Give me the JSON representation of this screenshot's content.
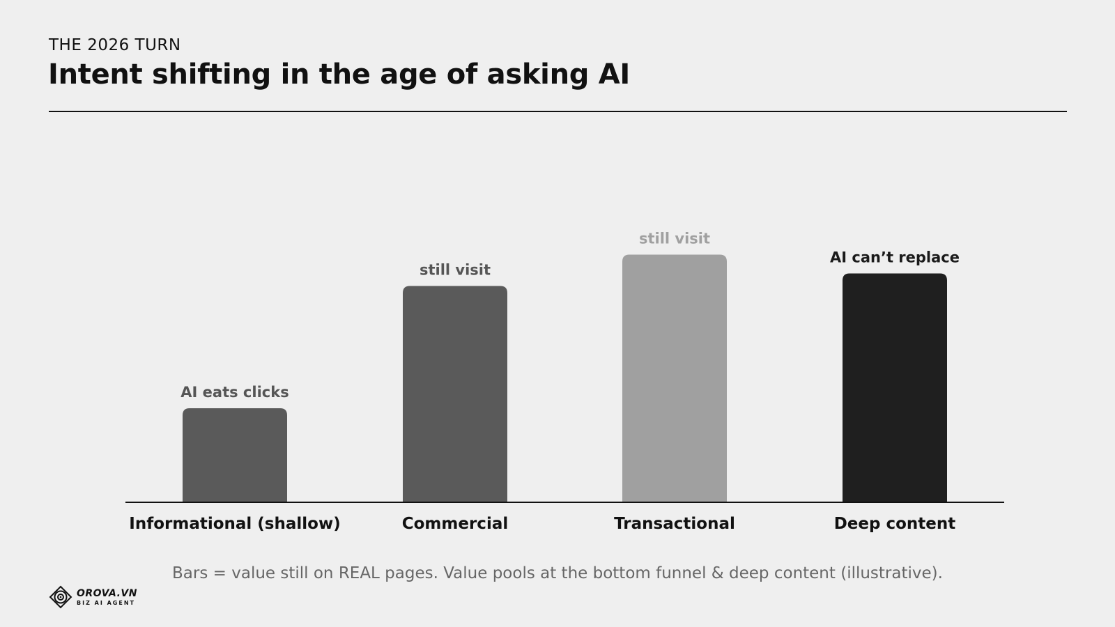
{
  "header": {
    "eyebrow": "THE 2026 TURN",
    "title": "Intent shifting in the age of asking AI"
  },
  "chart_data": {
    "type": "bar",
    "categories": [
      "Informational (shallow)",
      "Commercial",
      "Transactional",
      "Deep content"
    ],
    "values": [
      30,
      69,
      79,
      73
    ],
    "bar_annotations": [
      "AI eats clicks",
      "still visit",
      "still visit",
      "AI can’t replace"
    ],
    "bar_colors": [
      "#5a5a5a",
      "#5a5a5a",
      "#a0a0a0",
      "#1f1f1f"
    ],
    "annotation_colors": [
      "#555555",
      "#555555",
      "#a0a0a0",
      "#1a1a1a"
    ],
    "ylim": [
      0,
      100
    ],
    "title": "",
    "xlabel": "",
    "ylabel": "",
    "grid": false,
    "legend": "none"
  },
  "footnote": "Bars = value still on REAL pages. Value pools at the bottom funnel & deep content (illustrative).",
  "logo": {
    "name": "OROVA.VN",
    "tagline": "BIZ AI AGENT",
    "icon": "orova-logo-icon"
  }
}
